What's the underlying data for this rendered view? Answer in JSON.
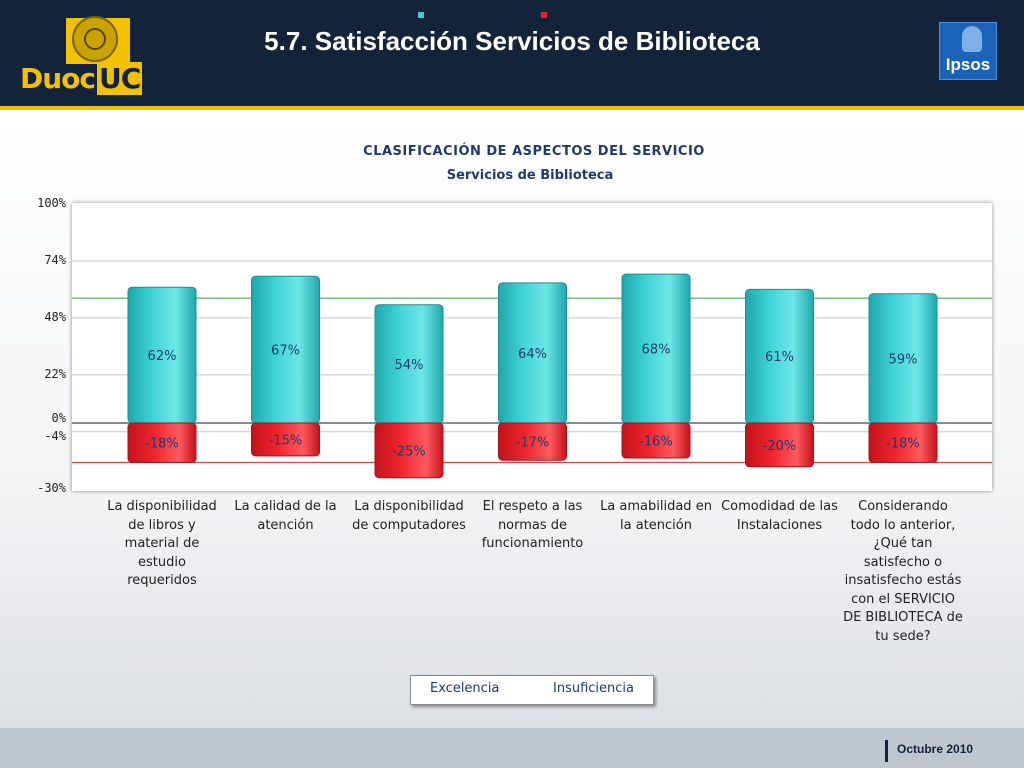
{
  "header": {
    "title": "5.7. Satisfacción Servicios de Biblioteca",
    "logo_left": "Duoc",
    "logo_left_accent": "UC",
    "logo_right": "Ipsos"
  },
  "footer": {
    "date": "Octubre 2010"
  },
  "colors": {
    "excelencia": "#3cc8cc",
    "insuficiencia": "#e8202a",
    "header_bg": "#13233a",
    "accent": "#f2c200"
  },
  "chart_data": {
    "type": "bar",
    "title": "CLASIFICACIÓN DE ASPECTOS DEL SERVICIO",
    "subtitle": "Servicios de Biblioteca",
    "y_ticks": [
      "100%",
      "74%",
      "48%",
      "22%",
      "0%",
      "-4%",
      "-30%"
    ],
    "ylim": [
      -30,
      100
    ],
    "grid": true,
    "legend_position": "bottom",
    "reference_lines": {
      "upper": 57,
      "lower": -18
    },
    "categories": [
      "La disponibilidad de libros y material de estudio requeridos",
      "La calidad de la atención",
      "La disponibilidad de computadores",
      "El respeto a las normas de funcionamiento",
      "La amabilidad en la atención",
      "Comodidad de las Instalaciones",
      "Considerando todo lo anterior, ¿Qué tan satisfecho o insatisfecho estás con el SERVICIO DE BIBLIOTECA de tu sede?"
    ],
    "series": [
      {
        "name": "Excelencia",
        "values": [
          62,
          67,
          54,
          64,
          68,
          61,
          59
        ],
        "labels": [
          "62%",
          "67%",
          "54%",
          "64%",
          "68%",
          "61%",
          "59%"
        ]
      },
      {
        "name": "Insuficiencia",
        "values": [
          -18,
          -15,
          -25,
          -17,
          -16,
          -20,
          -18
        ],
        "labels": [
          "-18%",
          "-15%",
          "-25%",
          "-17%",
          "-16%",
          "-20%",
          "-18%"
        ]
      }
    ]
  }
}
